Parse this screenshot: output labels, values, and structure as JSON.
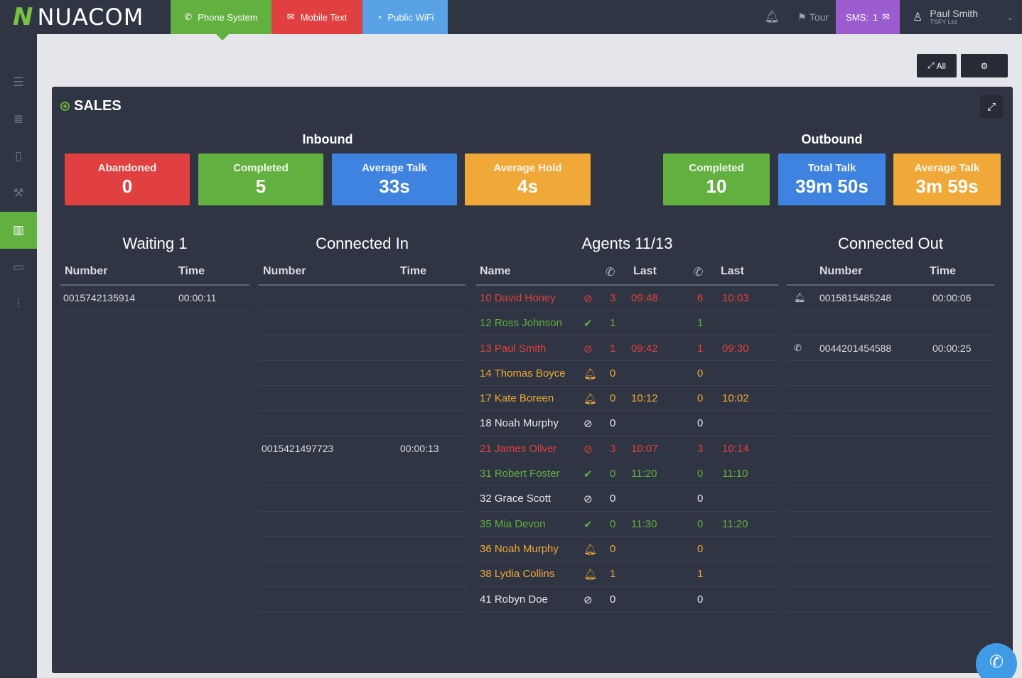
{
  "brand": {
    "mark": "N",
    "name": "NUACOM"
  },
  "nav": {
    "tabs": [
      {
        "label": "Phone System",
        "icon": "phone-icon"
      },
      {
        "label": "Mobile Text",
        "icon": "envelope-icon"
      },
      {
        "label": "Public WiFi",
        "icon": "wifi-icon"
      }
    ],
    "tour_label": "Tour",
    "sms_label": "SMS:",
    "sms_count": "1",
    "user_name": "Paul Smith",
    "user_company": "TSFY Ltd"
  },
  "toolbar": {
    "expand_all_label": "All"
  },
  "panel": {
    "title": "SALES",
    "inbound_title": "Inbound",
    "outbound_title": "Outbound",
    "inbound_stats": [
      {
        "label": "Abandoned",
        "value": "0",
        "color": "#e0403f"
      },
      {
        "label": "Completed",
        "value": "5",
        "color": "#62b03f"
      },
      {
        "label": "Average Talk",
        "value": "33s",
        "color": "#3f83e0"
      },
      {
        "label": "Average Hold",
        "value": "4s",
        "color": "#f0a838"
      }
    ],
    "outbound_stats": [
      {
        "label": "Completed",
        "value": "10",
        "color": "#62b03f"
      },
      {
        "label": "Total Talk",
        "value": "39m 50s",
        "color": "#3f83e0"
      },
      {
        "label": "Average Talk",
        "value": "3m 59s",
        "color": "#f0a838"
      }
    ]
  },
  "waiting": {
    "title": "Waiting 1",
    "col_number": "Number",
    "col_time": "Time",
    "rows": [
      {
        "number": "0015742135914",
        "time": "00:00:11"
      }
    ]
  },
  "connected_in": {
    "title": "Connected In",
    "col_number": "Number",
    "col_time": "Time",
    "rows": [
      {
        "number": "",
        "time": ""
      },
      {
        "number": "",
        "time": ""
      },
      {
        "number": "",
        "time": ""
      },
      {
        "number": "",
        "time": ""
      },
      {
        "number": "",
        "time": ""
      },
      {
        "number": "",
        "time": ""
      },
      {
        "number": "0015421497723",
        "time": "00:00:13"
      },
      {
        "number": "",
        "time": ""
      },
      {
        "number": "",
        "time": ""
      },
      {
        "number": "",
        "time": ""
      },
      {
        "number": "",
        "time": ""
      },
      {
        "number": "",
        "time": ""
      },
      {
        "number": "",
        "time": ""
      }
    ]
  },
  "agents": {
    "title": "Agents 11/13",
    "col_name": "Name",
    "col_last_in": "Last",
    "col_last_out": "Last",
    "rows": [
      {
        "name": "10 David Honey",
        "status": "busy",
        "in_count": "3",
        "in_last": "09:48",
        "out_count": "6",
        "out_last": "10:03"
      },
      {
        "name": "12 Ross Johnson",
        "status": "available",
        "in_count": "1",
        "in_last": "",
        "out_count": "1",
        "out_last": ""
      },
      {
        "name": "13 Paul Smith",
        "status": "busy",
        "in_count": "1",
        "in_last": "09:42",
        "out_count": "1",
        "out_last": "09:30"
      },
      {
        "name": "14 Thomas Boyce",
        "status": "ringing",
        "in_count": "0",
        "in_last": "",
        "out_count": "0",
        "out_last": ""
      },
      {
        "name": "17 Kate Boreen",
        "status": "ringing",
        "in_count": "0",
        "in_last": "10:12",
        "out_count": "0",
        "out_last": "10:02"
      },
      {
        "name": "18 Noah Murphy",
        "status": "offline",
        "in_count": "0",
        "in_last": "",
        "out_count": "0",
        "out_last": ""
      },
      {
        "name": "21 James Oliver",
        "status": "busy",
        "in_count": "3",
        "in_last": "10:07",
        "out_count": "3",
        "out_last": "10:14"
      },
      {
        "name": "31 Robert Foster",
        "status": "available",
        "in_count": "0",
        "in_last": "11:20",
        "out_count": "0",
        "out_last": "11:10"
      },
      {
        "name": "32 Grace Scott",
        "status": "offline",
        "in_count": "0",
        "in_last": "",
        "out_count": "0",
        "out_last": ""
      },
      {
        "name": "35 Mia Devon",
        "status": "available",
        "in_count": "0",
        "in_last": "11:30",
        "out_count": "0",
        "out_last": "11:20"
      },
      {
        "name": "36 Noah Murphy",
        "status": "ringing",
        "in_count": "0",
        "in_last": "",
        "out_count": "0",
        "out_last": ""
      },
      {
        "name": "38  Lydia Collins",
        "status": "ringing",
        "in_count": "1",
        "in_last": "",
        "out_count": "1",
        "out_last": ""
      },
      {
        "name": "41 Robyn Doe",
        "status": "offline",
        "in_count": "0",
        "in_last": "",
        "out_count": "0",
        "out_last": ""
      }
    ]
  },
  "connected_out": {
    "title": "Connected Out",
    "col_number": "Number",
    "col_time": "Time",
    "rows": [
      {
        "icon": "bell-icon",
        "number": "0015815485248",
        "time": "00:00:06"
      },
      {
        "icon": "",
        "number": "",
        "time": ""
      },
      {
        "icon": "phone-icon",
        "number": "0044201454588",
        "time": "00:00:25"
      },
      {
        "icon": "",
        "number": "",
        "time": ""
      },
      {
        "icon": "",
        "number": "",
        "time": ""
      },
      {
        "icon": "",
        "number": "",
        "time": ""
      },
      {
        "icon": "",
        "number": "",
        "time": ""
      },
      {
        "icon": "",
        "number": "",
        "time": ""
      },
      {
        "icon": "",
        "number": "",
        "time": ""
      },
      {
        "icon": "",
        "number": "",
        "time": ""
      },
      {
        "icon": "",
        "number": "",
        "time": ""
      },
      {
        "icon": "",
        "number": "",
        "time": ""
      },
      {
        "icon": "",
        "number": "",
        "time": ""
      }
    ]
  },
  "status_colors": {
    "busy": "#e0403f",
    "available": "#62b03f",
    "ringing": "#f0a838",
    "offline": "#e6e8ec"
  }
}
